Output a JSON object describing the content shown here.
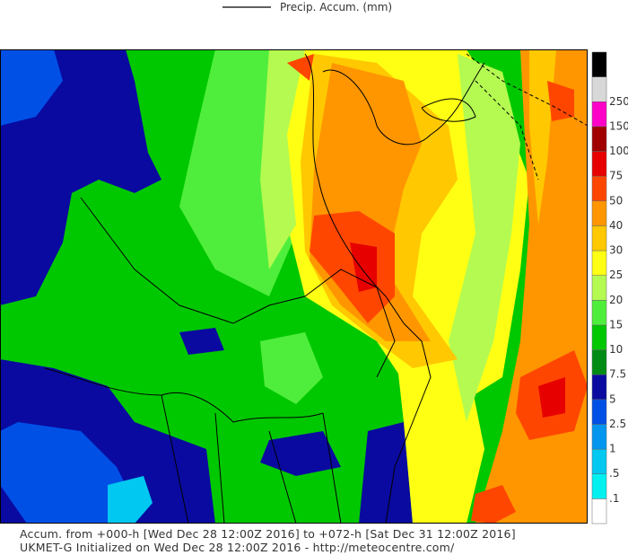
{
  "legend": {
    "label": "Precip. Accum. (mm)"
  },
  "colorbar": {
    "levels": [
      ".1",
      ".5",
      "1",
      "2.5",
      "5",
      "7.5",
      "10",
      "15",
      "20",
      "25",
      "30",
      "40",
      "50",
      "75",
      "100",
      "150",
      "250"
    ],
    "colors": [
      "#ffffff",
      "#00f0f0",
      "#00c8f0",
      "#0096f0",
      "#0050e6",
      "#0a0aa0",
      "#008c14",
      "#00c800",
      "#50ee3c",
      "#b4fa50",
      "#ffff14",
      "#ffc800",
      "#ff9600",
      "#ff4600",
      "#e60000",
      "#a00000",
      "#ff00c8",
      "#d8d8d8",
      "#000000"
    ]
  },
  "footer": {
    "line1": "Accum. from +000-h [Wed Dec 28 12:00Z 2016] to +072-h [Sat Dec 31 12:00Z 2016]",
    "line2": "UKMET-G Initialized on Wed Dec 28 12:00Z 2016 - http://meteocentre.com/"
  }
}
